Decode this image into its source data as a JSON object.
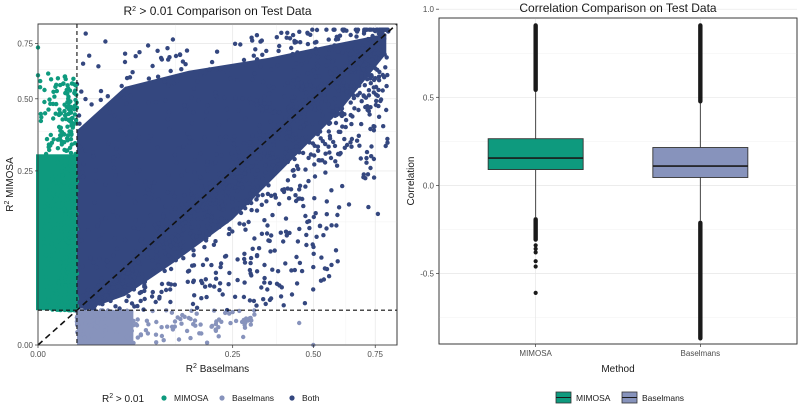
{
  "chart_data": [
    {
      "type": "scatter",
      "title": "Comparison on Test Data",
      "title_prefix": "R",
      "title_sup": "2",
      "title_suffix": " > 0.01 ",
      "xlabel_prefix": "R",
      "xlabel_sup": "2",
      "xlabel": " Baselmans",
      "ylabel_prefix": "R",
      "ylabel_sup": "2",
      "ylabel": " MIMOSA",
      "x_scale": "sqrt",
      "y_scale": "sqrt",
      "x_ticks": [
        0.0,
        0.25,
        0.5,
        0.75
      ],
      "x_tick_labels": [
        "0.00",
        "0.25",
        "0.50",
        "0.75"
      ],
      "y_ticks": [
        0.0,
        0.25,
        0.5,
        0.75
      ],
      "y_tick_labels": [
        "0.00",
        "0.25",
        "0.50",
        "0.75"
      ],
      "xlim": [
        0.0,
        0.85
      ],
      "ylim": [
        0.0,
        0.85
      ],
      "threshold": 0.01,
      "diagonal": "y = x (dashed)",
      "legend": {
        "title_prefix": "R",
        "title_sup": "2",
        "title_suffix": " > 0.01",
        "entries": [
          {
            "name": "MIMOSA",
            "color": "#0e9a7e"
          },
          {
            "name": "Baselmans",
            "color": "#8793bc"
          },
          {
            "name": "Both",
            "color": "#34477f"
          }
        ]
      },
      "series": [
        {
          "name": "MIMOSA",
          "description": "R² MIMOSA > 0.01 only",
          "x_range": [
            0.0,
            0.01
          ],
          "y_range": [
            0.01,
            0.73
          ]
        },
        {
          "name": "Baselmans",
          "description": "R² Baselmans > 0.01 only",
          "x_range": [
            0.01,
            0.51
          ],
          "y_range": [
            0.0,
            0.01
          ]
        },
        {
          "name": "Both",
          "description": "both > 0.01",
          "x_range": [
            0.01,
            0.82
          ],
          "y_range": [
            0.01,
            0.82
          ]
        }
      ],
      "notable_points": {
        "MIMOSA": [
          [
            0.0,
            0.73
          ],
          [
            0.0,
            0.6
          ],
          [
            0.001,
            0.48
          ],
          [
            0.002,
            0.55
          ],
          [
            0.004,
            0.42
          ],
          [
            0.006,
            0.5
          ],
          [
            0.008,
            0.39
          ],
          [
            0.003,
            0.35
          ]
        ],
        "Baselmans": [
          [
            0.3,
            0.005
          ],
          [
            0.45,
            0.004
          ],
          [
            0.5,
            0.0
          ],
          [
            0.2,
            0.003
          ],
          [
            0.15,
            0.006
          ],
          [
            0.12,
            0.002
          ]
        ],
        "Both": [
          [
            0.7,
            0.24
          ],
          [
            0.46,
            0.045
          ],
          [
            0.5,
            0.05
          ],
          [
            0.55,
            0.17
          ],
          [
            0.35,
            0.09
          ],
          [
            0.28,
            0.12
          ],
          [
            0.4,
            0.2
          ],
          [
            0.3,
            0.04
          ],
          [
            0.22,
            0.05
          ],
          [
            0.65,
            0.35
          ],
          [
            0.6,
            0.3
          ],
          [
            0.015,
            0.8
          ],
          [
            0.03,
            0.76
          ],
          [
            0.05,
            0.7
          ],
          [
            0.1,
            0.68
          ],
          [
            0.08,
            0.74
          ],
          [
            0.2,
            0.66
          ],
          [
            0.12,
            0.77
          ]
        ]
      }
    },
    {
      "type": "boxplot",
      "title": "Correlation Comparison on Test Data",
      "xlabel": "Method",
      "ylabel": "Correlation",
      "categories": [
        "MIMOSA",
        "Baselmans"
      ],
      "ylim": [
        -0.9,
        0.95
      ],
      "y_ticks": [
        -0.5,
        0.0,
        0.5,
        1.0
      ],
      "y_tick_labels": [
        "-0.5",
        "0.0",
        "0.5",
        "1.0"
      ],
      "boxes": [
        {
          "name": "MIMOSA",
          "color": "#0e9a7e",
          "q1": 0.09,
          "median": 0.155,
          "q3": 0.265,
          "whisker_low": -0.18,
          "whisker_high": 0.53,
          "outliers_high_range": [
            0.53,
            0.92
          ],
          "outliers_low_range": [
            -0.32,
            -0.18
          ],
          "outliers_low_scattered": [
            -0.34,
            -0.36,
            -0.38,
            -0.43,
            -0.46,
            -0.61
          ]
        },
        {
          "name": "Baselmans",
          "color": "#8793bc",
          "q1": 0.045,
          "median": 0.11,
          "q3": 0.215,
          "whisker_low": -0.2,
          "whisker_high": 0.465,
          "outliers_high_range": [
            0.465,
            0.92
          ],
          "outliers_low_range": [
            -0.88,
            -0.2
          ],
          "outliers_low_scattered": []
        }
      ],
      "legend": {
        "entries": [
          {
            "name": "MIMOSA",
            "color": "#0e9a7e"
          },
          {
            "name": "Baselmans",
            "color": "#8793bc"
          }
        ]
      }
    }
  ]
}
